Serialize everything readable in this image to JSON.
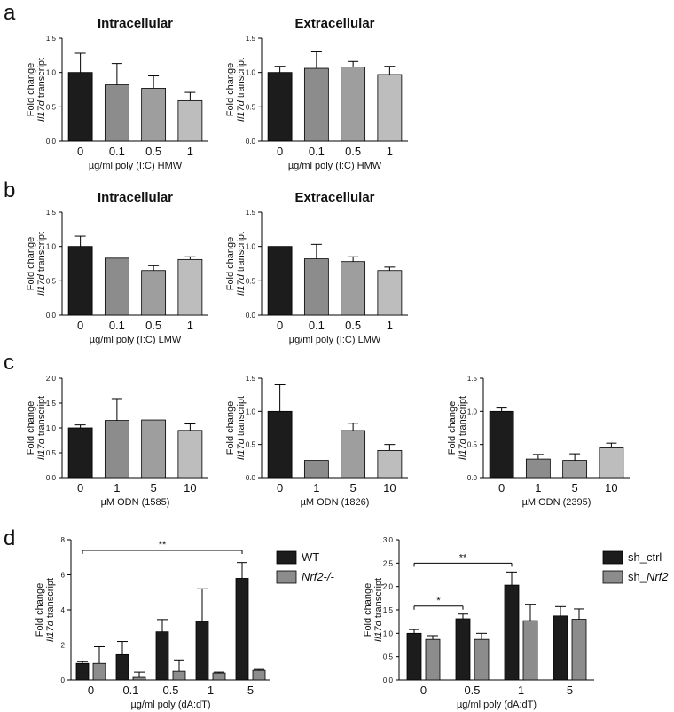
{
  "panels": [
    {
      "letter": "a"
    },
    {
      "letter": "b"
    },
    {
      "letter": "c"
    },
    {
      "letter": "d"
    }
  ],
  "chart_data": [
    {
      "id": "a1",
      "type": "bar",
      "title": "Intracellular",
      "categories": [
        "0",
        "0.1",
        "0.5",
        "1"
      ],
      "values": [
        1.0,
        0.82,
        0.77,
        0.59
      ],
      "errors": [
        0.28,
        0.31,
        0.18,
        0.12
      ],
      "colors": [
        "#1c1c1c",
        "#8c8c8c",
        "#9e9e9e",
        "#bdbdbd"
      ],
      "ylim": [
        0,
        1.5
      ],
      "yticks": [
        "0.0",
        "0.5",
        "1.0",
        "1.5"
      ],
      "xlabel": "µg/ml poly (I:C) HMW",
      "ylabel_line1": "Fold change",
      "ylabel_line2": "Il17d transcript"
    },
    {
      "id": "a2",
      "type": "bar",
      "title": "Extracellular",
      "categories": [
        "0",
        "0.1",
        "0.5",
        "1"
      ],
      "values": [
        1.0,
        1.06,
        1.08,
        0.97
      ],
      "errors": [
        0.09,
        0.24,
        0.08,
        0.12
      ],
      "colors": [
        "#1c1c1c",
        "#8c8c8c",
        "#9e9e9e",
        "#bdbdbd"
      ],
      "ylim": [
        0,
        1.5
      ],
      "yticks": [
        "0.0",
        "0.5",
        "1.0",
        "1.5"
      ],
      "xlabel": "µg/ml poly (I:C) HMW",
      "ylabel_line1": "Fold change",
      "ylabel_line2": "Il17d transcript"
    },
    {
      "id": "b1",
      "type": "bar",
      "title": "Intracellular",
      "categories": [
        "0",
        "0.1",
        "0.5",
        "1"
      ],
      "values": [
        1.0,
        0.83,
        0.65,
        0.81
      ],
      "errors": [
        0.15,
        0.0,
        0.07,
        0.04
      ],
      "colors": [
        "#1c1c1c",
        "#8c8c8c",
        "#9e9e9e",
        "#bdbdbd"
      ],
      "ylim": [
        0,
        1.5
      ],
      "yticks": [
        "0.0",
        "0.5",
        "1.0",
        "1.5"
      ],
      "xlabel": "µg/ml poly (I:C) LMW",
      "ylabel_line1": "Fold change",
      "ylabel_line2": "Il17d transcript"
    },
    {
      "id": "b2",
      "type": "bar",
      "title": "Extracellular",
      "categories": [
        "0",
        "0.1",
        "0.5",
        "1"
      ],
      "values": [
        1.0,
        0.82,
        0.78,
        0.65
      ],
      "errors": [
        0.0,
        0.21,
        0.07,
        0.05
      ],
      "colors": [
        "#1c1c1c",
        "#8c8c8c",
        "#9e9e9e",
        "#bdbdbd"
      ],
      "ylim": [
        0,
        1.5
      ],
      "yticks": [
        "0.0",
        "0.5",
        "1.0",
        "1.5"
      ],
      "xlabel": "µg/ml poly (I:C) LMW",
      "ylabel_line1": "Fold change",
      "ylabel_line2": "Il17d transcript"
    },
    {
      "id": "c1",
      "type": "bar",
      "title": "",
      "categories": [
        "0",
        "1",
        "5",
        "10"
      ],
      "values": [
        1.0,
        1.15,
        1.16,
        0.95
      ],
      "errors": [
        0.06,
        0.44,
        0.0,
        0.13
      ],
      "colors": [
        "#1c1c1c",
        "#8c8c8c",
        "#9e9e9e",
        "#bdbdbd"
      ],
      "ylim": [
        0,
        2.0
      ],
      "yticks": [
        "0.0",
        "0.5",
        "1.0",
        "1.5",
        "2.0"
      ],
      "xlabel": "µM ODN (1585)",
      "ylabel_line1": "Fold change",
      "ylabel_line2": "Il17d transcript"
    },
    {
      "id": "c2",
      "type": "bar",
      "title": "",
      "categories": [
        "0",
        "1",
        "5",
        "10"
      ],
      "values": [
        1.0,
        0.26,
        0.71,
        0.41
      ],
      "errors": [
        0.4,
        0.0,
        0.11,
        0.09
      ],
      "colors": [
        "#1c1c1c",
        "#8c8c8c",
        "#9e9e9e",
        "#bdbdbd"
      ],
      "ylim": [
        0,
        1.5
      ],
      "yticks": [
        "0.0",
        "0.5",
        "1.0",
        "1.5"
      ],
      "xlabel": "µM ODN (1826)",
      "ylabel_line1": "Fold change",
      "ylabel_line2": "Il17d transcript"
    },
    {
      "id": "c3",
      "type": "bar",
      "title": "",
      "categories": [
        "0",
        "1",
        "5",
        "10"
      ],
      "values": [
        1.0,
        0.28,
        0.26,
        0.45
      ],
      "errors": [
        0.05,
        0.07,
        0.1,
        0.07
      ],
      "colors": [
        "#1c1c1c",
        "#8c8c8c",
        "#9e9e9e",
        "#bdbdbd"
      ],
      "ylim": [
        0,
        1.5
      ],
      "yticks": [
        "0.0",
        "0.5",
        "1.0",
        "1.5"
      ],
      "xlabel": "µM ODN (2395)",
      "ylabel_line1": "Fold change",
      "ylabel_line2": "Il17d transcript"
    },
    {
      "id": "d1",
      "type": "grouped-bar",
      "title": "",
      "categories": [
        "0",
        "0.1",
        "0.5",
        "1",
        "5"
      ],
      "series": [
        {
          "name": "WT",
          "color": "#1c1c1c",
          "values": [
            0.95,
            1.45,
            2.75,
            3.35,
            5.8
          ],
          "errors": [
            0.1,
            0.75,
            0.7,
            1.85,
            0.9
          ]
        },
        {
          "name": "Nrf2-/-",
          "color": "#8c8c8c",
          "values": [
            0.95,
            0.15,
            0.5,
            0.4,
            0.55
          ],
          "errors": [
            0.95,
            0.3,
            0.65,
            0.05,
            0.05
          ]
        }
      ],
      "ylim": [
        0,
        8
      ],
      "yticks": [
        "0",
        "2",
        "4",
        "6",
        "8"
      ],
      "xlabel": "µg/ml poly (dA:dT)",
      "ylabel_line1": "Fold change",
      "ylabel_line2": "Il17d transcript",
      "significance": [
        {
          "from": 0,
          "to": 4,
          "label": "**"
        }
      ]
    },
    {
      "id": "d2",
      "type": "grouped-bar",
      "title": "",
      "categories": [
        "0",
        "0.5",
        "1",
        "5"
      ],
      "series": [
        {
          "name": "sh_ctrl",
          "color": "#1c1c1c",
          "values": [
            1.0,
            1.31,
            2.03,
            1.37
          ],
          "errors": [
            0.08,
            0.1,
            0.28,
            0.2
          ]
        },
        {
          "name": "sh_Nrf2",
          "color": "#8c8c8c",
          "values": [
            0.87,
            0.87,
            1.27,
            1.3
          ],
          "errors": [
            0.08,
            0.13,
            0.35,
            0.22
          ]
        }
      ],
      "ylim": [
        0,
        3.0
      ],
      "yticks": [
        "0.0",
        "0.5",
        "1.0",
        "1.5",
        "2.0",
        "2.5",
        "3.0"
      ],
      "xlabel": "µg/ml poly (dA:dT)",
      "ylabel_line1": "Fold change",
      "ylabel_line2": "Il17d transcript",
      "significance": [
        {
          "from": 0,
          "to": 1,
          "label": "*"
        },
        {
          "from": 0,
          "to": 2,
          "label": "**"
        }
      ]
    }
  ]
}
